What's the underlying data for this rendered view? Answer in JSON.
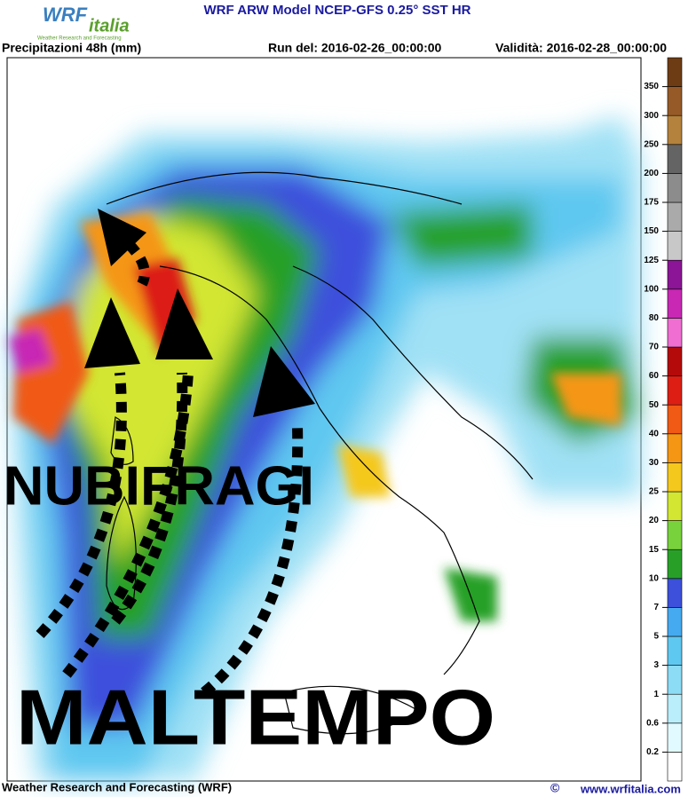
{
  "header": {
    "logo": {
      "main": "WRF",
      "accent": "italia",
      "tagline": "Weather Research and Forecasting"
    },
    "title": "WRF ARW Model NCEP-GFS 0.25° SST HR",
    "field": "Precipitazioni 48h (mm)",
    "run": "Run del: 2016-02-26_00:00:00",
    "validity": "Validità: 2016-02-28_00:00:00"
  },
  "overlay": {
    "top_text": "NUBIFRAGI",
    "bottom_text": "MALTEMPO"
  },
  "colorbar": {
    "labels": [
      0.2,
      0.6,
      1,
      3,
      5,
      7,
      10,
      15,
      20,
      25,
      30,
      40,
      50,
      60,
      70,
      80,
      100,
      125,
      150,
      175,
      200,
      250,
      300,
      350
    ],
    "colors": [
      "#ffffff",
      "#e1faff",
      "#b9eefa",
      "#8cdcf5",
      "#5fc8f0",
      "#46aaf0",
      "#3c50dc",
      "#28a028",
      "#78d23c",
      "#d2e632",
      "#f5c81e",
      "#f59614",
      "#f05a14",
      "#dc1e14",
      "#b40a0a",
      "#f06ed2",
      "#c828b4",
      "#8c1496",
      "#c8c8c8",
      "#aaaaaa",
      "#8c8c8c",
      "#646464",
      "#b4823c",
      "#965a28",
      "#6e3c14"
    ]
  },
  "footer": {
    "left": "Weather Research and Forecasting (WRF)",
    "copyright": "©",
    "site": "www.wrfitalia.com"
  }
}
